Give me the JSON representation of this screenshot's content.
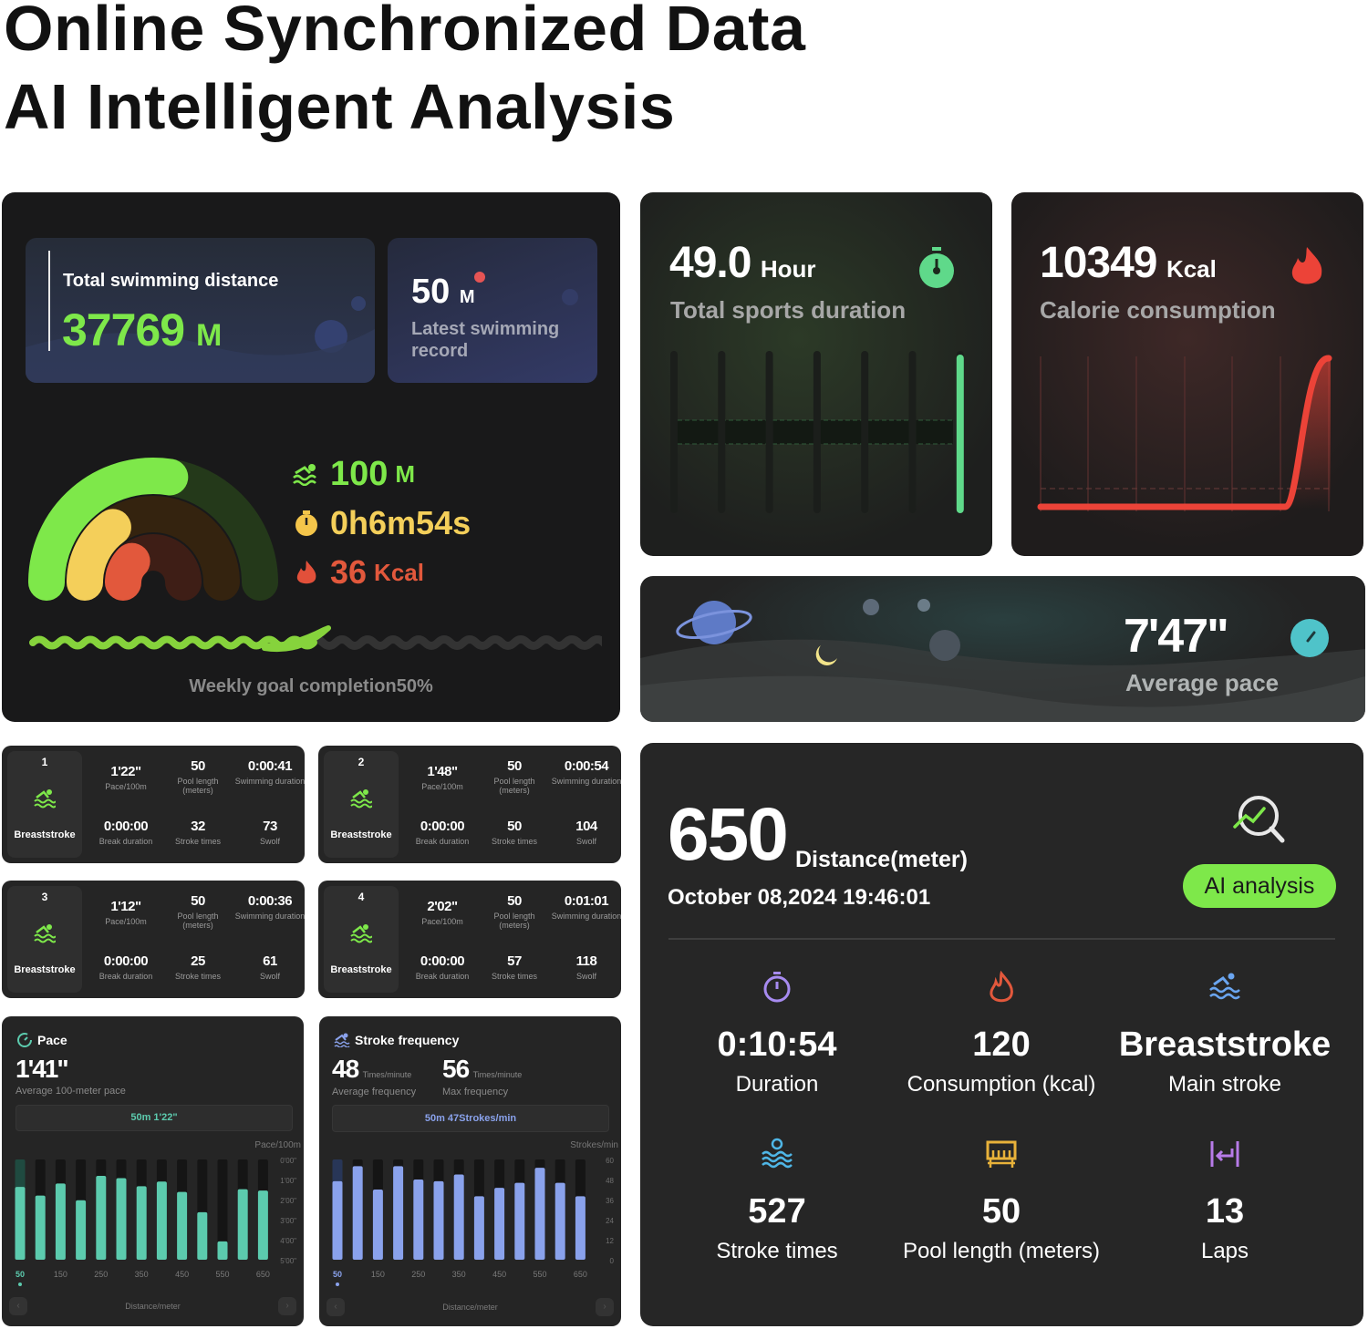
{
  "hero": {
    "line1": "Online Synchronized Data",
    "line2": "AI Intelligent Analysis"
  },
  "overview": {
    "total_distance": {
      "label": "Total swimming distance",
      "value": "37769",
      "unit": "M"
    },
    "latest_record": {
      "value": "50",
      "unit": "M",
      "label": "Latest swimming record"
    },
    "rings": [
      {
        "icon": "swimmer-icon",
        "value": "100",
        "unit": "M",
        "color": "#7ee84a",
        "track": "#24391a",
        "progress": 0.55
      },
      {
        "icon": "stopwatch-icon",
        "value": "0h6m54s",
        "unit": "",
        "color": "#f4cf5a",
        "track": "#34230f",
        "progress": 0.3
      },
      {
        "icon": "flame-icon",
        "value": "36",
        "unit": "Kcal",
        "color": "#e2583c",
        "track": "#3e1e16",
        "progress": 0.25
      }
    ],
    "weekly_goal": {
      "label": "Weekly goal completion50%",
      "progress": 0.5
    }
  },
  "duration_card": {
    "value": "49.0",
    "unit": "Hour",
    "label": "Total sports duration",
    "color": "#5fd98a",
    "bars": [
      0,
      0,
      0,
      0,
      0,
      0,
      1
    ]
  },
  "calorie_card": {
    "value": "10349",
    "unit": "Kcal",
    "label": "Calorie consumption",
    "color": "#ec4338"
  },
  "pace_card": {
    "value": "7'47\"",
    "label": "Average pace",
    "color": "#4fc3c9"
  },
  "laps": [
    {
      "num": "1",
      "stroke": "Breaststroke",
      "pace": "1'22\"",
      "pool": "50",
      "duration": "0:00:41",
      "break": "0:00:00",
      "strokes": "32",
      "swolf": "73"
    },
    {
      "num": "2",
      "stroke": "Breaststroke",
      "pace": "1'48\"",
      "pool": "50",
      "duration": "0:00:54",
      "break": "0:00:00",
      "strokes": "50",
      "swolf": "104"
    },
    {
      "num": "3",
      "stroke": "Breaststroke",
      "pace": "1'12\"",
      "pool": "50",
      "duration": "0:00:36",
      "break": "0:00:00",
      "strokes": "25",
      "swolf": "61"
    },
    {
      "num": "4",
      "stroke": "Breaststroke",
      "pace": "2'02\"",
      "pool": "50",
      "duration": "0:01:01",
      "break": "0:00:00",
      "strokes": "57",
      "swolf": "118"
    }
  ],
  "lap_labels": {
    "pace": "Pace/100m",
    "pool": "Pool length (meters)",
    "duration": "Swimming duration",
    "break": "Break duration",
    "strokes": "Stroke times",
    "swolf": "Swolf"
  },
  "pace_chart_card": {
    "title": "Pace",
    "value": "1'41\"",
    "sub": "Average 100-meter pace",
    "selected": "50m 1'22\"",
    "xlabel": "Distance/meter"
  },
  "stroke_chart_card": {
    "title": "Stroke frequency",
    "avg": "48",
    "avg_unit": "Times/minute",
    "avg_label": "Average frequency",
    "max": "56",
    "max_unit": "Times/minute",
    "max_label": "Max frequency",
    "selected": "50m 47Strokes/min",
    "xlabel": "Distance/meter"
  },
  "chart_data": [
    {
      "type": "bar",
      "ylabel": "Pace/100m",
      "xlabel": "Distance/meter",
      "x": [
        50,
        100,
        150,
        200,
        250,
        300,
        350,
        400,
        450,
        500,
        550,
        600,
        650
      ],
      "x_tick_labels": [
        "50",
        "150",
        "250",
        "350",
        "450",
        "550",
        "650"
      ],
      "values": [
        "1'22\"",
        "1'48\"",
        "1'12\"",
        "2'02\"",
        "0'49\"",
        "0'56\"",
        "1'20\"",
        "1'06\"",
        "1'37\"",
        "2'38\"",
        "4'05\"",
        "1'29\"",
        "1'33\""
      ],
      "y_tick_labels": [
        "0'00\"",
        "1'00\"",
        "2'00\"",
        "3'00\"",
        "4'00\"",
        "5'00\""
      ],
      "ylim": [
        "0'00\"",
        "5'00\""
      ],
      "y_inverted": true,
      "color": "#5ccbae",
      "selected_index": 0
    },
    {
      "type": "bar",
      "ylabel": "Strokes/min",
      "xlabel": "Distance/meter",
      "x": [
        50,
        100,
        150,
        200,
        250,
        300,
        350,
        400,
        450,
        500,
        550,
        600,
        650
      ],
      "x_tick_labels": [
        "50",
        "150",
        "250",
        "350",
        "450",
        "550",
        "650"
      ],
      "values": [
        47,
        56,
        42,
        56,
        48,
        47,
        51,
        38,
        43,
        46,
        55,
        46,
        38
      ],
      "y_tick_labels": [
        "60",
        "48",
        "36",
        "24",
        "12",
        "0"
      ],
      "ylim": [
        0,
        60
      ],
      "color": "#8aa2ec",
      "selected_index": 0
    }
  ],
  "session": {
    "distance": "650",
    "distance_label": "Distance(meter)",
    "datetime": "October 08,2024 19:46:01",
    "ai_button": "AI analysis",
    "stats": [
      {
        "icon": "stopwatch-icon",
        "value": "0:10:54",
        "label": "Duration",
        "color": "#a78bf0"
      },
      {
        "icon": "flame-icon",
        "value": "120",
        "label": "Consumption (kcal)",
        "color": "#e2583c"
      },
      {
        "icon": "swimmer-icon",
        "value": "Breaststroke",
        "label": "Main stroke",
        "color": "#6aa5f0"
      },
      {
        "icon": "waves-icon",
        "value": "527",
        "label": "Stroke times",
        "color": "#4fb6e6"
      },
      {
        "icon": "pool-icon",
        "value": "50",
        "label": "Pool length (meters)",
        "color": "#e8b23a"
      },
      {
        "icon": "laps-icon",
        "value": "13",
        "label": "Laps",
        "color": "#b77be8"
      }
    ]
  }
}
